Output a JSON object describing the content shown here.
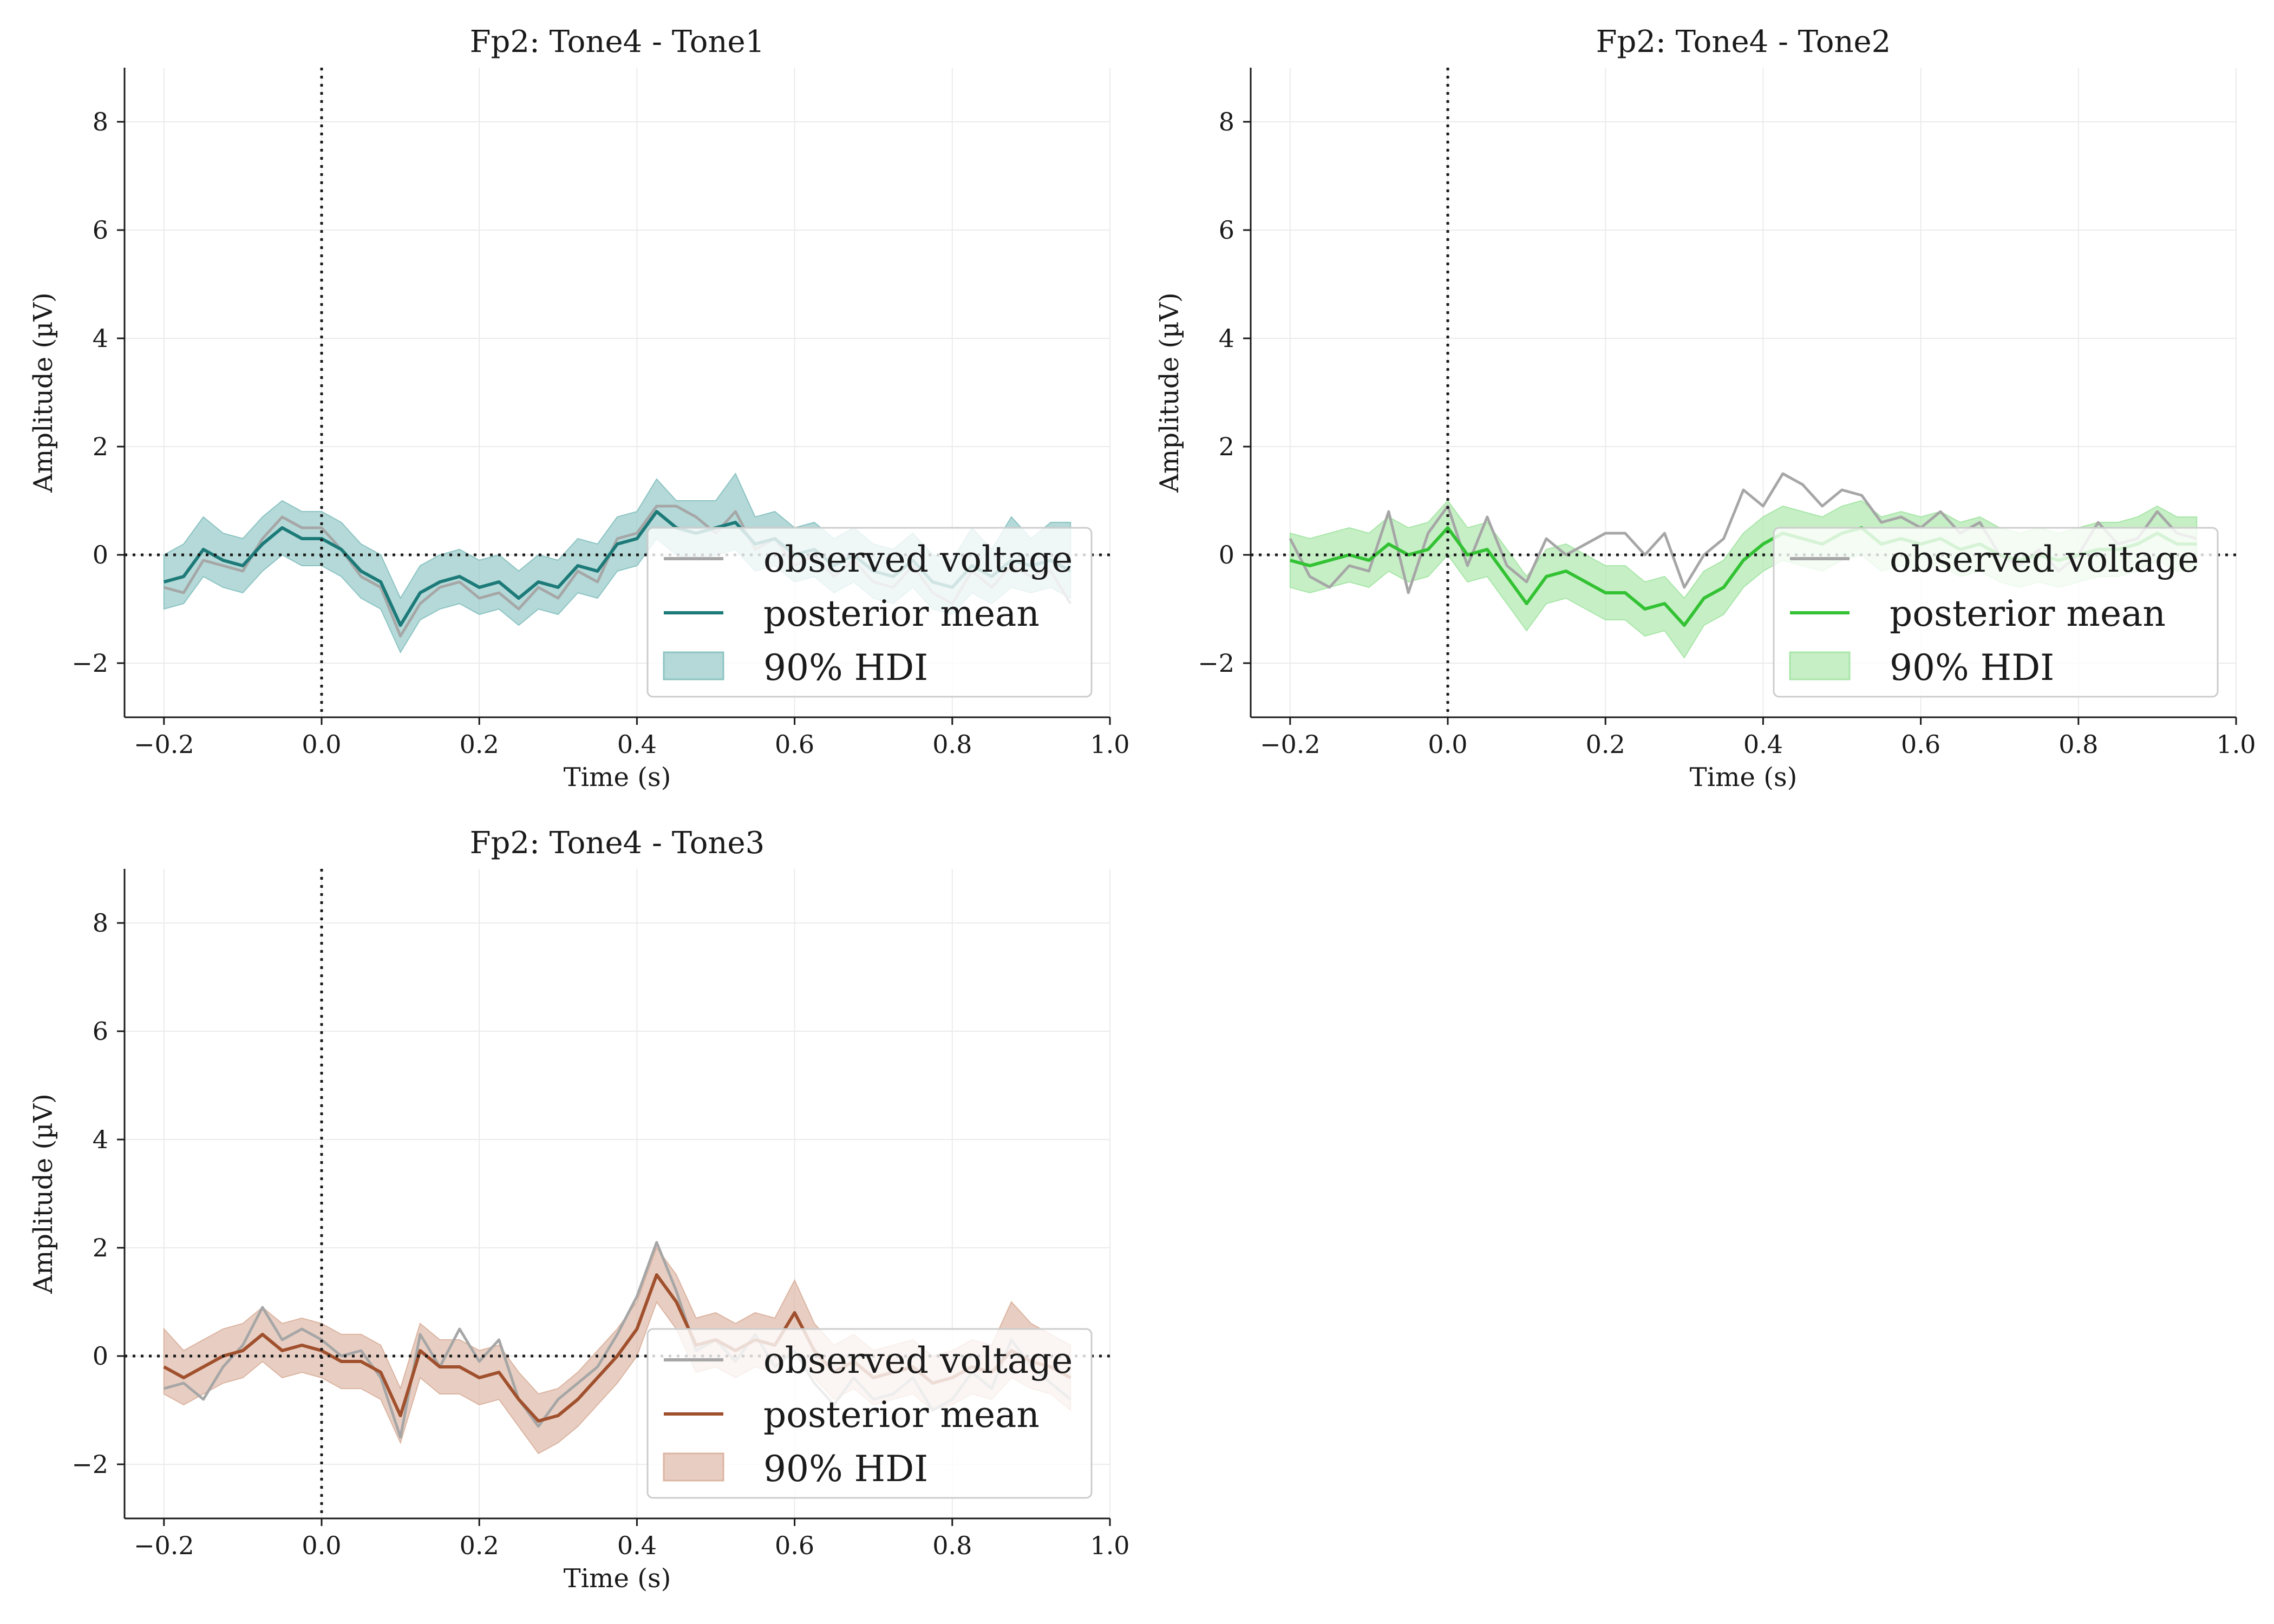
{
  "colors": {
    "observed": "#a6a6a6",
    "grid": "#ebebeb",
    "axis": "#1a1a1a"
  },
  "legend": {
    "observed_label": "observed voltage",
    "mean_label": "posterior mean",
    "hdi_label": "90% HDI"
  },
  "chart_data": [
    {
      "type": "line",
      "title": "Fp2: Tone4 - Tone1",
      "xlabel": "Time (s)",
      "ylabel": "Amplitude (µV)",
      "xlim": [
        -0.25,
        1.0
      ],
      "ylim": [
        -3,
        9
      ],
      "xticks": [
        -0.2,
        0.0,
        0.2,
        0.4,
        0.6,
        0.8,
        1.0
      ],
      "xtick_labels": [
        "−0.2",
        "0.0",
        "0.2",
        "0.4",
        "0.6",
        "0.8",
        "1.0"
      ],
      "yticks": [
        -2,
        0,
        2,
        4,
        6,
        8
      ],
      "ytick_labels": [
        "−2",
        "0",
        "2",
        "4",
        "6",
        "8"
      ],
      "grid": true,
      "legend_position": "lower-right",
      "vline_x": 0.0,
      "hline_y": 0.0,
      "color": "#1c7a78",
      "hdi_color": "#8cc4c3",
      "x": [
        -0.2,
        -0.175,
        -0.15,
        -0.125,
        -0.1,
        -0.075,
        -0.05,
        -0.025,
        0.0,
        0.025,
        0.05,
        0.075,
        0.1,
        0.125,
        0.15,
        0.175,
        0.2,
        0.225,
        0.25,
        0.275,
        0.3,
        0.325,
        0.35,
        0.375,
        0.4,
        0.425,
        0.45,
        0.475,
        0.5,
        0.525,
        0.55,
        0.575,
        0.6,
        0.625,
        0.65,
        0.675,
        0.7,
        0.725,
        0.75,
        0.775,
        0.8,
        0.825,
        0.85,
        0.875,
        0.9,
        0.925,
        0.95
      ],
      "observed": [
        -0.6,
        -0.7,
        -0.1,
        -0.2,
        -0.3,
        0.3,
        0.7,
        0.5,
        0.5,
        0.1,
        -0.4,
        -0.6,
        -1.5,
        -0.9,
        -0.6,
        -0.5,
        -0.8,
        -0.7,
        -1.0,
        -0.6,
        -0.8,
        -0.3,
        -0.5,
        0.3,
        0.4,
        0.9,
        0.9,
        0.7,
        0.4,
        0.8,
        0.1,
        0.3,
        -0.2,
        0.0,
        -0.4,
        -0.1,
        -0.5,
        -0.6,
        -0.2,
        -0.7,
        -0.9,
        -0.3,
        -0.6,
        -0.2,
        -0.4,
        -0.3,
        -0.9
      ],
      "mean": [
        -0.5,
        -0.4,
        0.1,
        -0.1,
        -0.2,
        0.2,
        0.5,
        0.3,
        0.3,
        0.1,
        -0.3,
        -0.5,
        -1.3,
        -0.7,
        -0.5,
        -0.4,
        -0.6,
        -0.5,
        -0.8,
        -0.5,
        -0.6,
        -0.2,
        -0.3,
        0.2,
        0.3,
        0.8,
        0.5,
        0.4,
        0.5,
        0.6,
        0.2,
        0.3,
        0.0,
        0.1,
        -0.2,
        0.0,
        -0.3,
        -0.4,
        -0.1,
        -0.5,
        -0.6,
        -0.2,
        -0.4,
        -0.1,
        -0.2,
        -0.1,
        -0.3
      ],
      "hdi_lower": [
        -1.0,
        -0.9,
        -0.4,
        -0.6,
        -0.7,
        -0.3,
        0.0,
        -0.2,
        -0.2,
        -0.4,
        -0.8,
        -1.0,
        -1.8,
        -1.2,
        -1.0,
        -0.9,
        -1.1,
        -1.0,
        -1.3,
        -1.0,
        -1.1,
        -0.7,
        -0.8,
        -0.3,
        -0.2,
        0.3,
        0.0,
        -0.1,
        0.0,
        0.1,
        -0.3,
        -0.2,
        -0.5,
        -0.4,
        -0.7,
        -0.5,
        -0.8,
        -0.9,
        -0.6,
        -1.0,
        -1.1,
        -0.7,
        -0.9,
        -0.6,
        -0.7,
        -0.6,
        -0.8
      ],
      "hdi_upper": [
        0.0,
        0.2,
        0.7,
        0.4,
        0.3,
        0.7,
        1.0,
        0.8,
        0.8,
        0.6,
        0.2,
        0.0,
        -0.8,
        -0.2,
        0.0,
        0.1,
        -0.1,
        0.0,
        -0.3,
        0.0,
        -0.1,
        0.3,
        0.2,
        0.7,
        0.8,
        1.4,
        1.0,
        1.0,
        1.0,
        1.5,
        0.7,
        0.8,
        0.5,
        0.6,
        0.3,
        0.5,
        0.2,
        0.1,
        0.4,
        0.0,
        -0.1,
        0.5,
        0.1,
        0.7,
        0.3,
        0.6,
        0.6
      ]
    },
    {
      "type": "line",
      "title": "Fp2: Tone4 - Tone2",
      "xlabel": "Time (s)",
      "ylabel": "Amplitude (µV)",
      "xlim": [
        -0.25,
        1.0
      ],
      "ylim": [
        -3,
        9
      ],
      "xticks": [
        -0.2,
        0.0,
        0.2,
        0.4,
        0.6,
        0.8,
        1.0
      ],
      "xtick_labels": [
        "−0.2",
        "0.0",
        "0.2",
        "0.4",
        "0.6",
        "0.8",
        "1.0"
      ],
      "yticks": [
        -2,
        0,
        2,
        4,
        6,
        8
      ],
      "ytick_labels": [
        "−2",
        "0",
        "2",
        "4",
        "6",
        "8"
      ],
      "grid": true,
      "legend_position": "lower-right",
      "vline_x": 0.0,
      "hline_y": 0.0,
      "color": "#33c233",
      "hdi_color": "#a8e6a8",
      "x": [
        -0.2,
        -0.175,
        -0.15,
        -0.125,
        -0.1,
        -0.075,
        -0.05,
        -0.025,
        0.0,
        0.025,
        0.05,
        0.075,
        0.1,
        0.125,
        0.15,
        0.175,
        0.2,
        0.225,
        0.25,
        0.275,
        0.3,
        0.325,
        0.35,
        0.375,
        0.4,
        0.425,
        0.45,
        0.475,
        0.5,
        0.525,
        0.55,
        0.575,
        0.6,
        0.625,
        0.65,
        0.675,
        0.7,
        0.725,
        0.75,
        0.775,
        0.8,
        0.825,
        0.85,
        0.875,
        0.9,
        0.925,
        0.95
      ],
      "observed": [
        0.3,
        -0.4,
        -0.6,
        -0.2,
        -0.3,
        0.8,
        -0.7,
        0.4,
        0.9,
        -0.2,
        0.7,
        -0.2,
        -0.5,
        0.3,
        0.0,
        0.2,
        0.4,
        0.4,
        0.0,
        0.4,
        -0.6,
        0.0,
        0.3,
        1.2,
        0.9,
        1.5,
        1.3,
        0.9,
        1.2,
        1.1,
        0.6,
        0.7,
        0.5,
        0.8,
        0.4,
        0.6,
        0.0,
        -0.2,
        0.1,
        -0.3,
        0.0,
        0.6,
        0.2,
        0.3,
        0.8,
        0.4,
        0.3
      ],
      "mean": [
        -0.1,
        -0.2,
        -0.1,
        0.0,
        -0.1,
        0.2,
        0.0,
        0.1,
        0.5,
        0.0,
        0.1,
        -0.4,
        -0.9,
        -0.4,
        -0.3,
        -0.5,
        -0.7,
        -0.7,
        -1.0,
        -0.9,
        -1.3,
        -0.8,
        -0.6,
        -0.1,
        0.2,
        0.4,
        0.3,
        0.2,
        0.4,
        0.5,
        0.2,
        0.3,
        0.2,
        0.3,
        0.1,
        0.2,
        0.0,
        -0.1,
        0.0,
        -0.1,
        0.0,
        0.1,
        0.1,
        0.2,
        0.4,
        0.2,
        0.2
      ],
      "hdi_lower": [
        -0.6,
        -0.7,
        -0.6,
        -0.5,
        -0.6,
        -0.3,
        -0.5,
        -0.4,
        0.0,
        -0.5,
        -0.4,
        -0.9,
        -1.4,
        -0.9,
        -0.8,
        -1.0,
        -1.2,
        -1.2,
        -1.5,
        -1.4,
        -1.9,
        -1.3,
        -1.1,
        -0.6,
        -0.3,
        -0.1,
        -0.2,
        -0.3,
        -0.1,
        0.0,
        -0.3,
        -0.2,
        -0.3,
        -0.2,
        -0.4,
        -0.3,
        -0.5,
        -0.6,
        -0.5,
        -0.6,
        -0.5,
        -0.4,
        -0.4,
        -0.3,
        -0.1,
        -0.3,
        -0.3
      ],
      "hdi_upper": [
        0.4,
        0.3,
        0.4,
        0.5,
        0.4,
        0.7,
        0.5,
        0.6,
        1.0,
        0.5,
        0.6,
        0.1,
        -0.4,
        0.1,
        0.2,
        0.0,
        -0.2,
        -0.2,
        -0.5,
        -0.4,
        -0.8,
        -0.3,
        -0.1,
        0.4,
        0.7,
        0.9,
        0.8,
        0.7,
        0.9,
        1.0,
        0.7,
        0.8,
        0.7,
        0.8,
        0.6,
        0.7,
        0.5,
        0.4,
        0.5,
        0.4,
        0.5,
        0.6,
        0.6,
        0.7,
        0.9,
        0.7,
        0.7
      ]
    },
    {
      "type": "line",
      "title": "Fp2: Tone4 - Tone3",
      "xlabel": "Time (s)",
      "ylabel": "Amplitude (µV)",
      "xlim": [
        -0.25,
        1.0
      ],
      "ylim": [
        -3,
        9
      ],
      "xticks": [
        -0.2,
        0.0,
        0.2,
        0.4,
        0.6,
        0.8,
        1.0
      ],
      "xtick_labels": [
        "−0.2",
        "0.0",
        "0.2",
        "0.4",
        "0.6",
        "0.8",
        "1.0"
      ],
      "yticks": [
        -2,
        0,
        2,
        4,
        6,
        8
      ],
      "ytick_labels": [
        "−2",
        "0",
        "2",
        "4",
        "6",
        "8"
      ],
      "grid": true,
      "legend_position": "lower-right",
      "vline_x": 0.0,
      "hline_y": 0.0,
      "color": "#a0502d",
      "hdi_color": "#dbb4a1",
      "x": [
        -0.2,
        -0.175,
        -0.15,
        -0.125,
        -0.1,
        -0.075,
        -0.05,
        -0.025,
        0.0,
        0.025,
        0.05,
        0.075,
        0.1,
        0.125,
        0.15,
        0.175,
        0.2,
        0.225,
        0.25,
        0.275,
        0.3,
        0.325,
        0.35,
        0.375,
        0.4,
        0.425,
        0.45,
        0.475,
        0.5,
        0.525,
        0.55,
        0.575,
        0.6,
        0.625,
        0.65,
        0.675,
        0.7,
        0.725,
        0.75,
        0.775,
        0.8,
        0.825,
        0.85,
        0.875,
        0.9,
        0.925,
        0.95
      ],
      "observed": [
        -0.6,
        -0.5,
        -0.8,
        -0.2,
        0.2,
        0.9,
        0.3,
        0.5,
        0.3,
        0.0,
        0.1,
        -0.4,
        -1.5,
        0.4,
        -0.2,
        0.5,
        -0.1,
        0.3,
        -0.8,
        -1.3,
        -0.8,
        -0.5,
        -0.2,
        0.4,
        1.1,
        2.1,
        1.2,
        0.1,
        0.3,
        -0.1,
        0.4,
        -0.2,
        0.1,
        -0.5,
        -0.9,
        -0.4,
        -0.8,
        -0.7,
        -0.4,
        -1.0,
        -0.8,
        -0.3,
        -0.6,
        0.3,
        -0.2,
        -0.5,
        -0.8
      ],
      "mean": [
        -0.2,
        -0.4,
        -0.2,
        0.0,
        0.1,
        0.4,
        0.1,
        0.2,
        0.1,
        -0.1,
        -0.1,
        -0.3,
        -1.1,
        0.1,
        -0.2,
        -0.2,
        -0.4,
        -0.3,
        -0.8,
        -1.2,
        -1.1,
        -0.8,
        -0.4,
        0.0,
        0.5,
        1.5,
        1.0,
        0.2,
        0.3,
        0.1,
        0.3,
        0.2,
        0.8,
        0.1,
        -0.3,
        -0.1,
        -0.4,
        -0.3,
        -0.2,
        -0.5,
        -0.4,
        -0.2,
        -0.3,
        0.1,
        -0.1,
        -0.2,
        -0.4
      ],
      "hdi_lower": [
        -0.7,
        -0.9,
        -0.7,
        -0.5,
        -0.4,
        -0.1,
        -0.4,
        -0.3,
        -0.4,
        -0.6,
        -0.6,
        -0.8,
        -1.6,
        -0.4,
        -0.7,
        -0.7,
        -0.9,
        -0.8,
        -1.3,
        -1.8,
        -1.6,
        -1.3,
        -0.9,
        -0.5,
        0.0,
        1.0,
        0.5,
        -0.3,
        -0.2,
        -0.4,
        -0.2,
        -0.3,
        0.2,
        -0.4,
        -0.8,
        -0.6,
        -0.9,
        -0.8,
        -0.7,
        -1.0,
        -0.9,
        -0.7,
        -0.8,
        -0.4,
        -0.6,
        -0.7,
        -1.0
      ],
      "hdi_upper": [
        0.5,
        0.1,
        0.3,
        0.5,
        0.6,
        0.9,
        0.6,
        0.7,
        0.6,
        0.4,
        0.4,
        0.2,
        -0.6,
        0.6,
        0.3,
        0.3,
        0.1,
        0.2,
        -0.3,
        -0.7,
        -0.6,
        -0.3,
        0.1,
        0.5,
        1.0,
        2.0,
        1.5,
        0.7,
        0.8,
        0.6,
        0.8,
        0.7,
        1.4,
        0.6,
        0.2,
        0.4,
        0.1,
        0.2,
        0.3,
        0.0,
        0.1,
        0.3,
        0.2,
        1.0,
        0.6,
        0.4,
        0.2
      ]
    }
  ]
}
